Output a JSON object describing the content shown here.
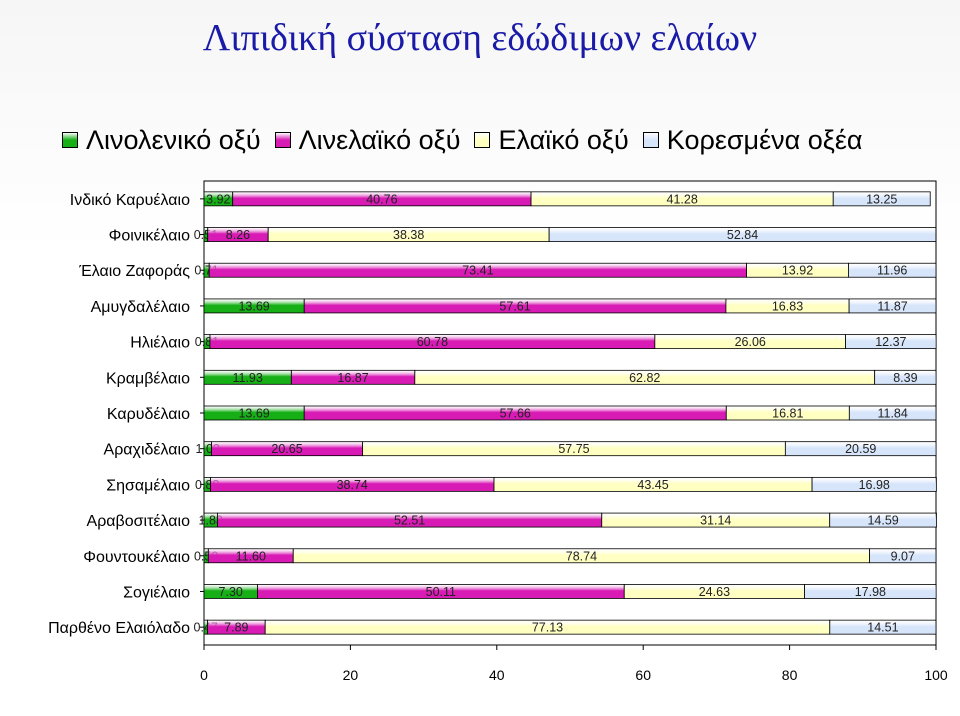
{
  "chart_data": {
    "type": "bar",
    "orientation": "horizontal",
    "stacked": true,
    "title": "Λιπιδική σύσταση εδώδιμων ελαίων",
    "categories": [
      "Ινδικό Καρυέλαιο",
      "Φοινικέλαιο",
      "Έλαιο Ζαφοράς",
      "Αμυγδαλέλαιο",
      "Ηλιέλαιο",
      "Κραμβέλαιο",
      "Καρυδέλαιο",
      "Αραχιδέλαιο",
      "Σησαμέλαιο",
      "Αραβοσιτέλαιο",
      "Φουντουκέλαιο",
      "Σογιέλαιο",
      "Παρθένο Ελαιόλαδο"
    ],
    "series": [
      {
        "name": "Λινολενικό οξύ",
        "color": "#16b016",
        "values": [
          3.92,
          0.51,
          0.71,
          13.69,
          0.81,
          11.93,
          13.69,
          1.02,
          0.88,
          1.83,
          0.59,
          7.3,
          0.47
        ]
      },
      {
        "name": "Λινελαϊκό οξύ",
        "color": "#d81bb4",
        "values": [
          40.76,
          8.26,
          73.41,
          57.61,
          60.78,
          16.87,
          57.66,
          20.65,
          38.74,
          52.51,
          11.6,
          50.11,
          7.89
        ]
      },
      {
        "name": "Ελαϊκό οξύ",
        "color": "#ffffc2",
        "values": [
          41.28,
          38.38,
          13.92,
          16.83,
          26.06,
          62.82,
          16.81,
          57.75,
          43.45,
          31.14,
          78.74,
          24.63,
          77.13
        ]
      },
      {
        "name": "Κορεσμένα οξέα",
        "color": "#d7e5fb",
        "values": [
          13.25,
          52.84,
          11.96,
          11.87,
          12.37,
          8.39,
          11.84,
          20.59,
          16.98,
          14.59,
          9.07,
          17.98,
          14.51
        ]
      }
    ],
    "labels": [
      [
        "3.92",
        "40.76",
        "41.28",
        "13.25"
      ],
      [
        "0.51",
        "8.26",
        "38.38",
        "52.84"
      ],
      [
        "0.71",
        "73.41",
        "13.92",
        "11.96"
      ],
      [
        "13.69",
        "57.61",
        "16.83",
        "11.87"
      ],
      [
        "0.81",
        "60.78",
        "26.06",
        "12.37"
      ],
      [
        "11.93",
        "16.87",
        "62.82",
        "8.39"
      ],
      [
        "13.69",
        "57.66",
        "16.81",
        "11.84"
      ],
      [
        "1.02",
        "20.65",
        "57.75",
        "20.59"
      ],
      [
        "0.88",
        "38.74",
        "43.45",
        "16.98"
      ],
      [
        "1.83",
        "52.51",
        "31.14",
        "14.59"
      ],
      [
        "0.59",
        "11.60",
        "78.74",
        "9.07"
      ],
      [
        "7.30",
        "50.11",
        "24.63",
        "17.98"
      ],
      [
        "0.47",
        "7.89",
        "77.13",
        "14.51"
      ]
    ],
    "xlim": [
      0,
      100
    ],
    "xticks": [
      "0",
      "20",
      "40",
      "60",
      "80",
      "100"
    ],
    "legend": "top",
    "grid": false
  }
}
